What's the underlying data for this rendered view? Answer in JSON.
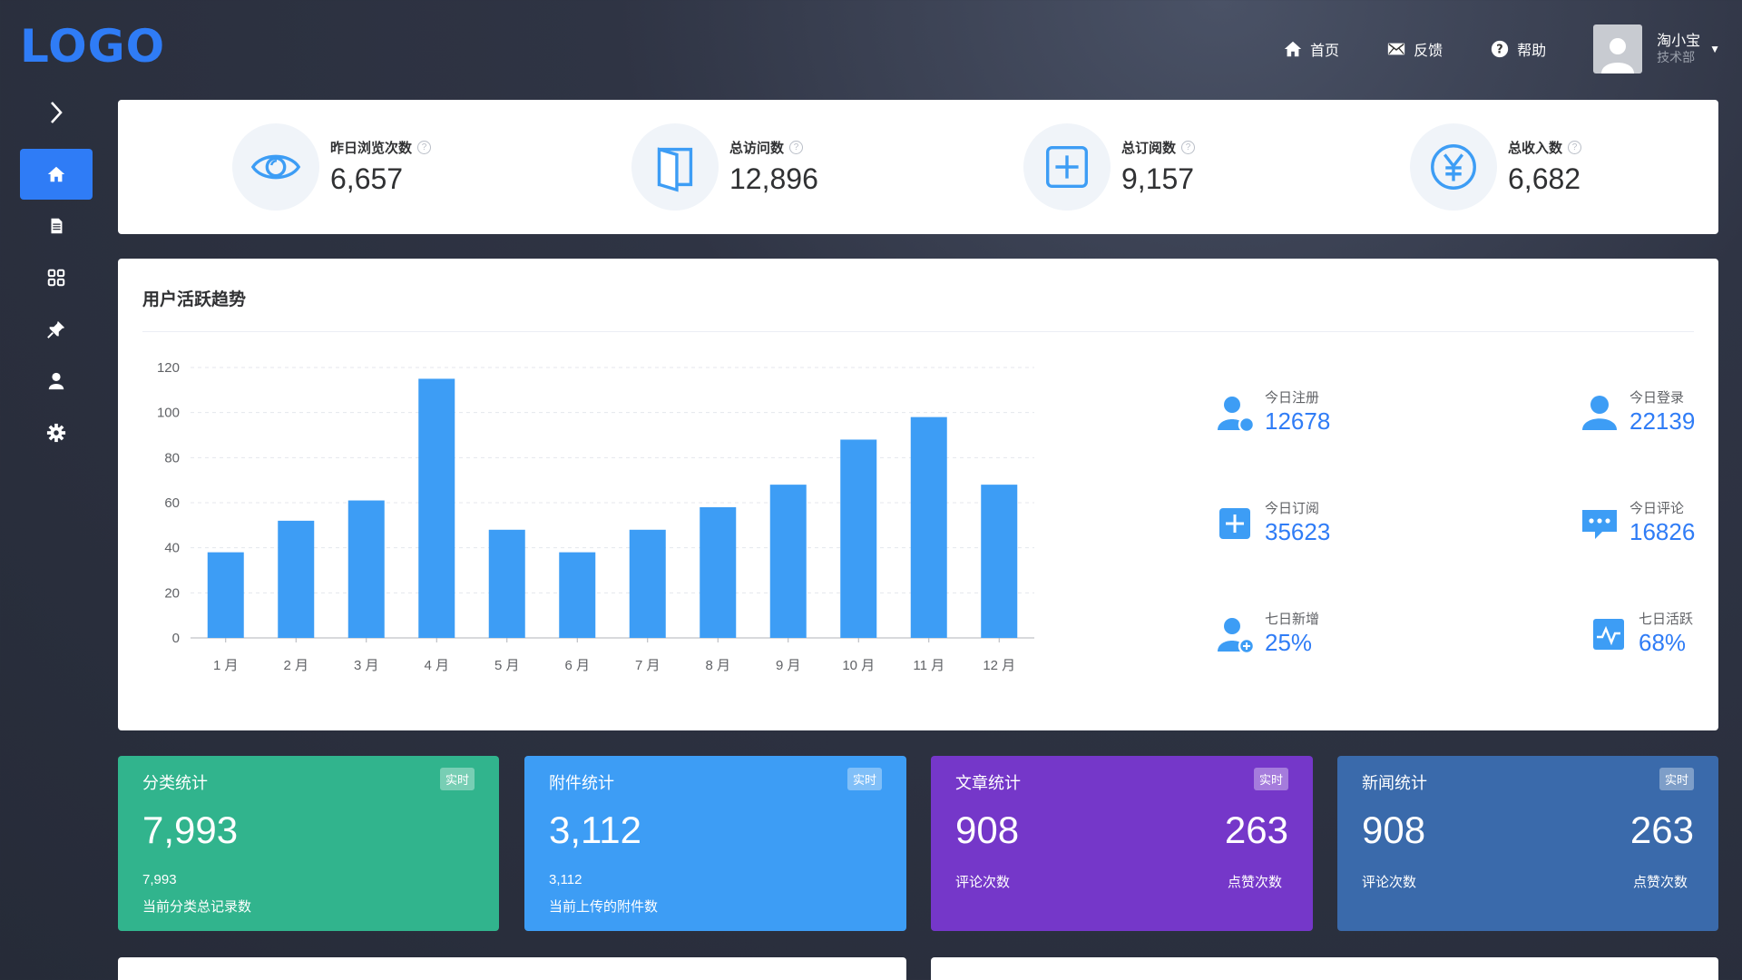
{
  "app": {
    "logo": "LOGO"
  },
  "header": {
    "nav": [
      {
        "label": "首页",
        "icon": "home-icon"
      },
      {
        "label": "反馈",
        "icon": "mail-icon"
      },
      {
        "label": "帮助",
        "icon": "help-icon"
      }
    ],
    "user": {
      "name": "淘小宝",
      "dept": "技术部"
    }
  },
  "sidebar": {
    "items": [
      {
        "icon": "home-icon",
        "active": true
      },
      {
        "icon": "document-icon",
        "active": false
      },
      {
        "icon": "grid-icon",
        "active": false
      },
      {
        "icon": "pin-icon",
        "active": false
      },
      {
        "icon": "user-icon",
        "active": false
      },
      {
        "icon": "gear-icon",
        "active": false
      }
    ]
  },
  "stats": [
    {
      "label": "昨日浏览次数",
      "value": "6,657",
      "icon": "eye-icon"
    },
    {
      "label": "总访问数",
      "value": "12,896",
      "icon": "door-icon"
    },
    {
      "label": "总订阅数",
      "value": "9,157",
      "icon": "plus-square-icon"
    },
    {
      "label": "总收入数",
      "value": "6,682",
      "icon": "yen-icon"
    }
  ],
  "trend": {
    "title": "用户活跃趋势",
    "metrics": [
      {
        "label": "今日注册",
        "value": "12678",
        "icon": "user-add-icon"
      },
      {
        "label": "今日登录",
        "value": "22139",
        "icon": "user-icon"
      },
      {
        "label": "今日订阅",
        "value": "35623",
        "icon": "plus-square-icon"
      },
      {
        "label": "今日评论",
        "value": "16826",
        "icon": "comment-icon"
      },
      {
        "label": "七日新增",
        "value": "25%",
        "icon": "user-plus-icon"
      },
      {
        "label": "七日活跃",
        "value": "68%",
        "icon": "activity-icon"
      }
    ]
  },
  "chart_data": {
    "type": "bar",
    "categories": [
      "1 月",
      "2 月",
      "3 月",
      "4 月",
      "5 月",
      "6 月",
      "7 月",
      "8 月",
      "9 月",
      "10 月",
      "11 月",
      "12 月"
    ],
    "values": [
      38,
      52,
      61,
      115,
      48,
      38,
      48,
      58,
      68,
      88,
      98,
      68
    ],
    "ylim": [
      0,
      120
    ],
    "yticks": [
      0,
      20,
      40,
      60,
      80,
      100,
      120
    ],
    "color": "#3d9df5",
    "grid": true
  },
  "tiles": [
    {
      "title": "分类统计",
      "badge": "实时",
      "big": "7,993",
      "sub": "7,993",
      "desc": "当前分类总记录数",
      "color": "#31b48d"
    },
    {
      "title": "附件统计",
      "badge": "实时",
      "big": "3,112",
      "sub": "3,112",
      "desc": "当前上传的附件数",
      "color": "#3d9df5"
    },
    {
      "title": "文章统计",
      "badge": "实时",
      "big_left": "908",
      "big_right": "263",
      "sub_left": "评论次数",
      "sub_right": "点赞次数",
      "color": "#7537c9"
    },
    {
      "title": "新闻统计",
      "badge": "实时",
      "big_left": "908",
      "big_right": "263",
      "sub_left": "评论次数",
      "sub_right": "点赞次数",
      "color": "#3a6aab"
    }
  ]
}
